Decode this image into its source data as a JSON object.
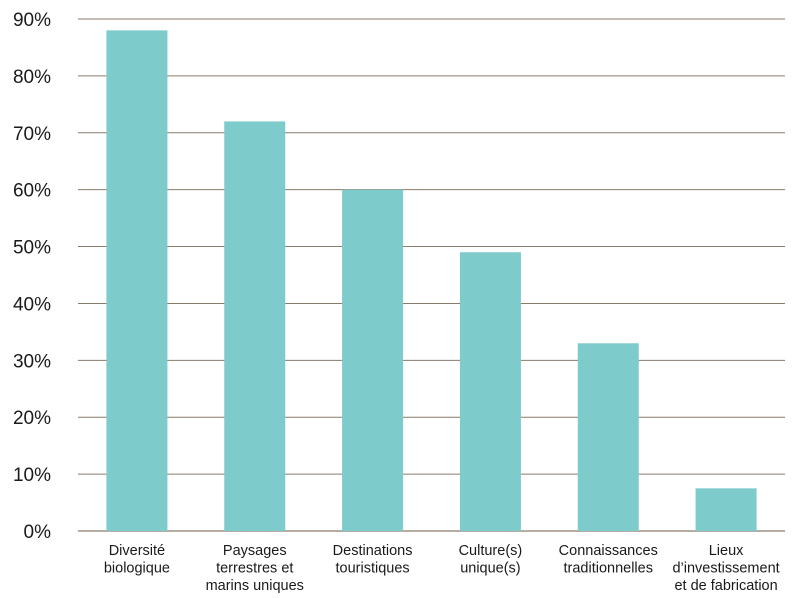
{
  "chart_data": {
    "type": "bar",
    "title": "",
    "xlabel": "",
    "ylabel": "",
    "ylim": [
      0,
      90
    ],
    "ytick_step": 10,
    "ytick_suffix": "%",
    "grid": true,
    "bar_color": "#7ecbcb",
    "grid_color": "#8a7a6a",
    "categories": [
      [
        "Diversité",
        "biologique"
      ],
      [
        "Paysages",
        "terrestres et",
        "marins uniques"
      ],
      [
        "Destinations",
        "touristiques"
      ],
      [
        "Culture(s)",
        "unique(s)"
      ],
      [
        "Connaissances",
        "traditionnelles"
      ],
      [
        "Lieux",
        "d’investissement",
        "et de fabrication"
      ]
    ],
    "values": [
      88,
      72,
      60,
      49,
      33,
      7.5
    ]
  }
}
